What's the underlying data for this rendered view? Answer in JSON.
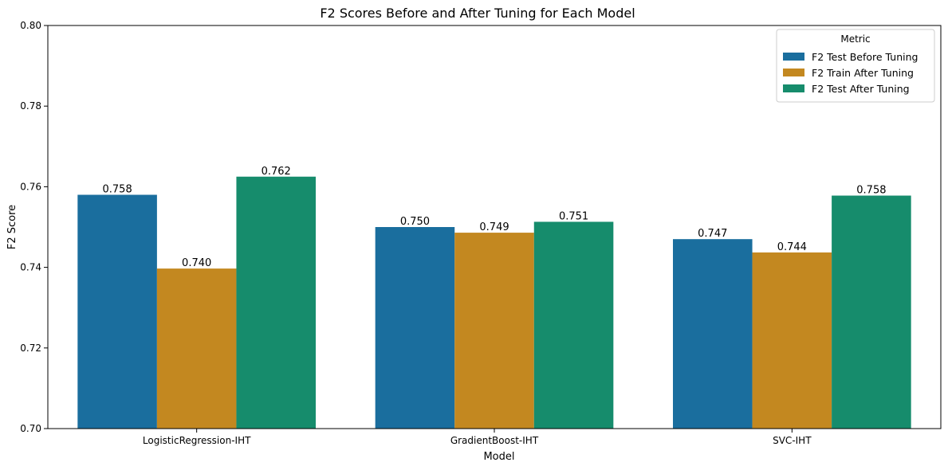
{
  "chart_data": {
    "type": "bar",
    "title": "F2 Scores Before and After Tuning for Each Model",
    "xlabel": "Model",
    "ylabel": "F2 Score",
    "ylim": [
      0.7,
      0.8
    ],
    "yticks": [
      "0.70",
      "0.72",
      "0.74",
      "0.76",
      "0.78",
      "0.80"
    ],
    "categories": [
      "LogisticRegression-IHT",
      "GradientBoost-IHT",
      "SVC-IHT"
    ],
    "series": [
      {
        "name": "F2 Test Before Tuning",
        "color": "#1a6e9e",
        "values": [
          0.758,
          0.75,
          0.747
        ],
        "labels": [
          "0.758",
          "0.750",
          "0.747"
        ]
      },
      {
        "name": "F2 Train After Tuning",
        "color": "#c38820",
        "values": [
          0.7397,
          0.7486,
          0.7437
        ],
        "labels": [
          "0.740",
          "0.749",
          "0.744"
        ]
      },
      {
        "name": "F2 Test After Tuning",
        "color": "#168c6c",
        "values": [
          0.7625,
          0.7513,
          0.7578
        ],
        "labels": [
          "0.762",
          "0.751",
          "0.758"
        ]
      }
    ],
    "legend": {
      "title": "Metric",
      "position": "top-right"
    },
    "grid": false
  }
}
